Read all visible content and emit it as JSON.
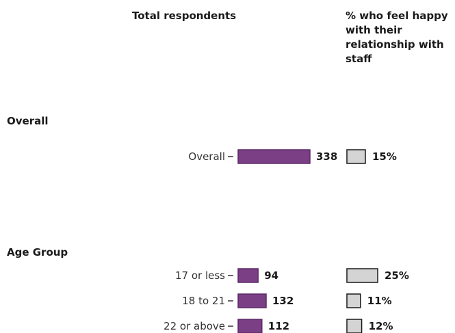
{
  "chart_data": {
    "type": "bar",
    "headers": {
      "total": "Total respondents",
      "pct_lines": [
        "% who feel happy",
        "with their",
        "relationship with",
        "staff"
      ]
    },
    "groups": [
      {
        "title": "Overall",
        "rows": [
          {
            "label": "Overall",
            "total": 338,
            "total_label": "338",
            "pct": 15,
            "pct_label": "15%"
          }
        ]
      },
      {
        "title": "Age Group",
        "rows": [
          {
            "label": "17 or less",
            "total": 94,
            "total_label": "94",
            "pct": 25,
            "pct_label": "25%"
          },
          {
            "label": "18 to 21",
            "total": 132,
            "total_label": "132",
            "pct": 11,
            "pct_label": "11%"
          },
          {
            "label": "22 or above",
            "total": 112,
            "total_label": "112",
            "pct": 12,
            "pct_label": "12%"
          }
        ]
      }
    ],
    "colors": {
      "total_bar": "#7b3f85",
      "total_bar_stroke": "#5c2a66",
      "pct_bar": "#d4d4d4",
      "pct_bar_stroke": "#1a1a1a"
    }
  }
}
